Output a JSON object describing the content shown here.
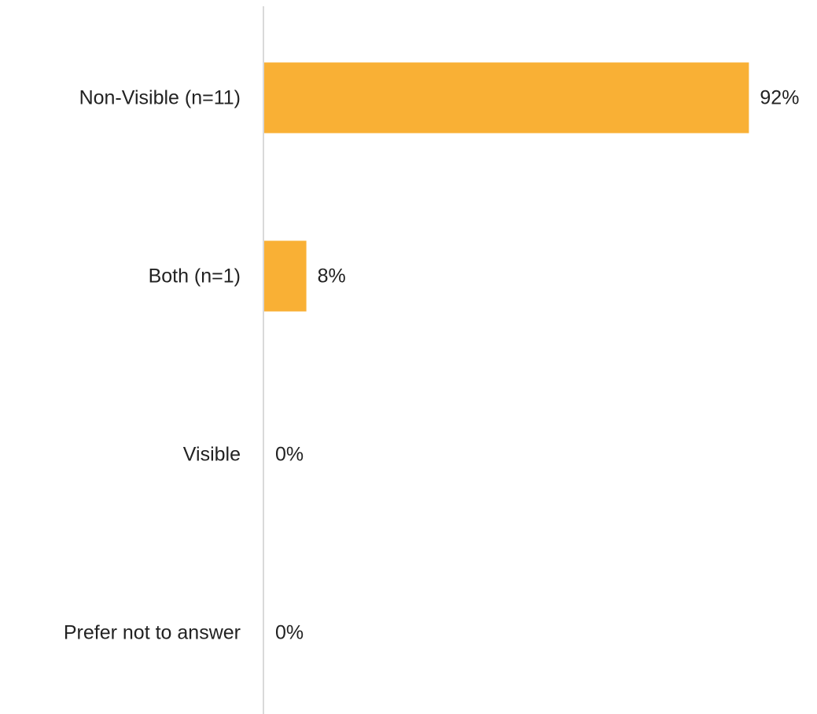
{
  "chart_data": {
    "type": "bar",
    "orientation": "horizontal",
    "categories": [
      "Non-Visible (n=11)",
      "Both (n=1)",
      "Visible",
      "Prefer not to answer"
    ],
    "values": [
      92,
      8,
      0,
      0
    ],
    "value_labels": [
      "92%",
      "8%",
      "0%",
      "0%"
    ],
    "xlim": [
      0,
      100
    ],
    "title": "",
    "xlabel": "",
    "ylabel": "",
    "grid": false,
    "bar_color": "#F9B035",
    "axis_color": "#D9D9D9",
    "text_color": "#222222"
  }
}
